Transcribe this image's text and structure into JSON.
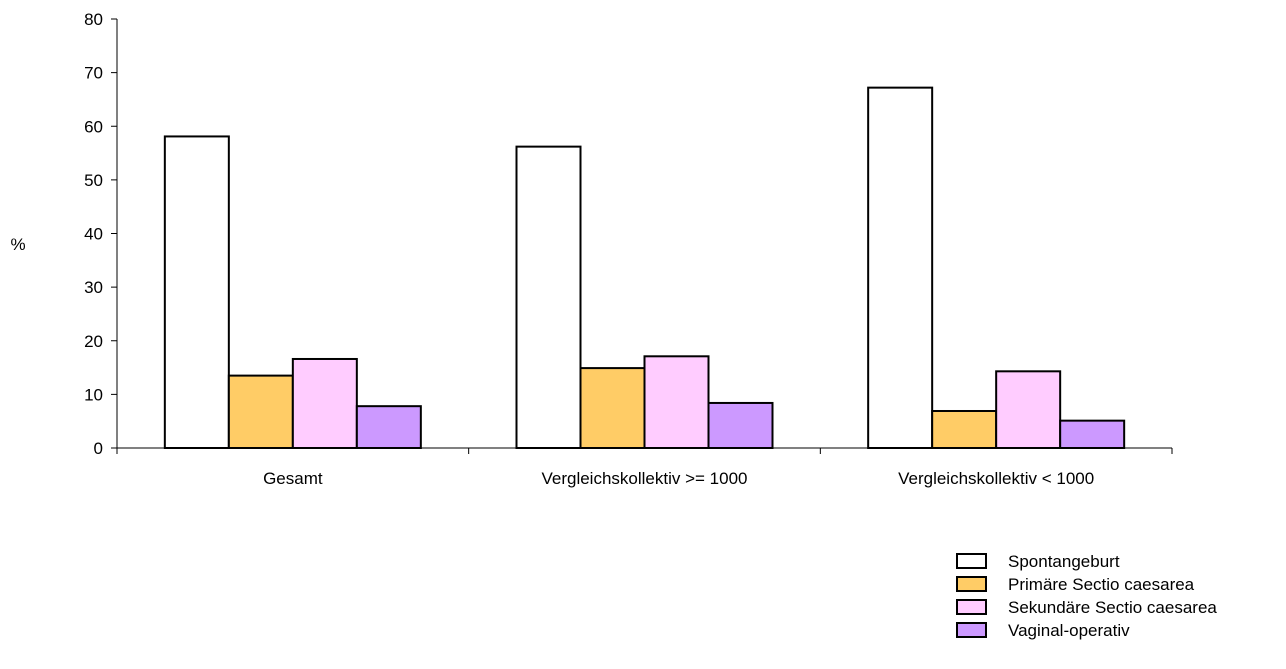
{
  "chart_data": {
    "type": "bar",
    "title": "",
    "xlabel": "",
    "ylabel": "%",
    "ylim": [
      0,
      80
    ],
    "yticks": [
      "0",
      "10",
      "20",
      "30",
      "40",
      "50",
      "60",
      "70",
      "80"
    ],
    "categories": [
      "Gesamt",
      "Vergleichskollektiv >= 1000",
      "Vergleichskollektiv < 1000"
    ],
    "series": [
      {
        "name": "Spontangeburt",
        "color": "#ffffff",
        "values": [
          58.1,
          56.2,
          67.2
        ]
      },
      {
        "name": "Primäre Sectio caesarea",
        "color": "#ffcc66",
        "values": [
          13.5,
          14.9,
          6.9
        ]
      },
      {
        "name": "Sekundäre Sectio caesarea",
        "color": "#ffccff",
        "values": [
          16.6,
          17.1,
          14.3
        ]
      },
      {
        "name": "Vaginal-operativ",
        "color": "#cc99ff",
        "values": [
          7.8,
          8.4,
          5.1
        ]
      }
    ],
    "grid": false,
    "legend_position": "bottom-right"
  }
}
